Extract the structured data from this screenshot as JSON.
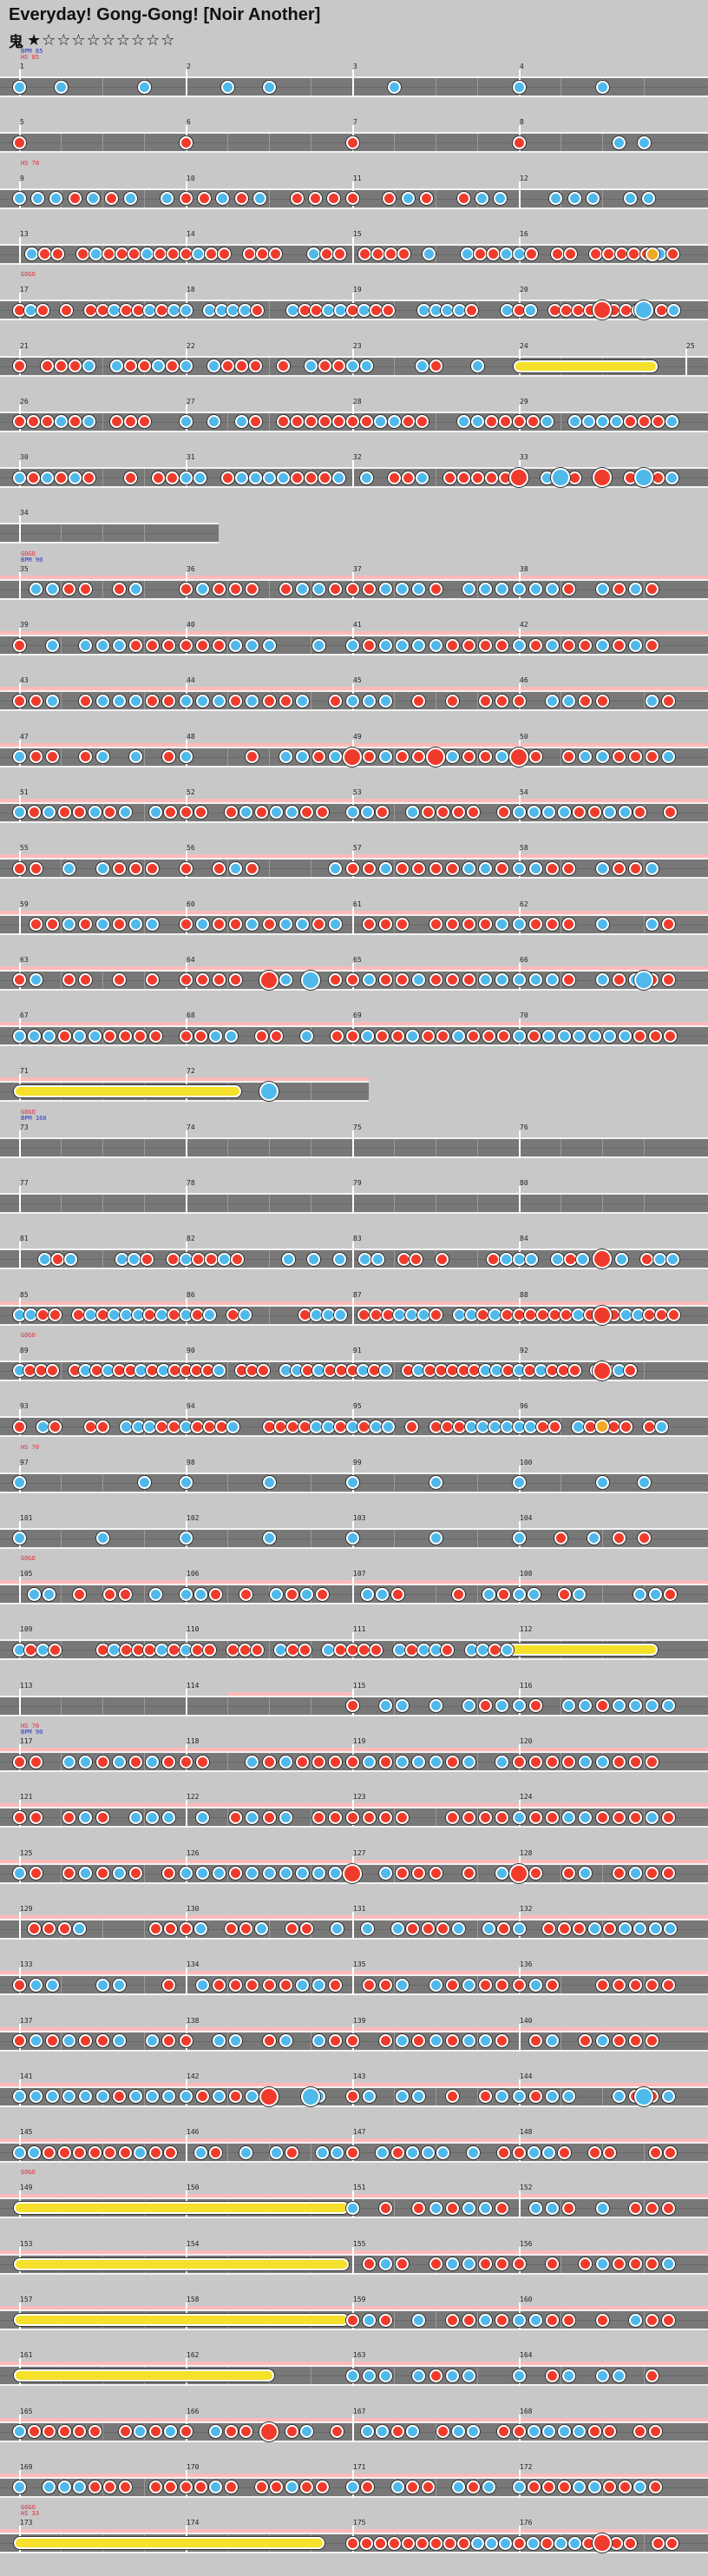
{
  "title": "Everyday! Gong-Gong! [Noir Another]",
  "difficulty": {
    "label": "鬼",
    "stars": "★☆☆☆☆☆☆☆☆☆"
  },
  "colors": {
    "don": "#f03b2c",
    "ka": "#4fb9ec",
    "roll": "#f5e02b",
    "gogo": "#ffb9b9",
    "lane": "#787878"
  },
  "rows": [
    {
      "measures": [
        1,
        2,
        3,
        4
      ],
      "labels": [
        "BPM 85",
        "HS 85"
      ],
      "label_colors": [
        "#2a33c8",
        "#e2283c"
      ],
      "gogo": [
        0,
        0,
        0,
        0
      ],
      "notes": [
        [
          0,
          "k"
        ],
        [
          0.25,
          "k"
        ],
        [
          0.75,
          "k"
        ],
        [
          1.25,
          "k"
        ],
        [
          1.5,
          "k"
        ],
        [
          2.25,
          "k"
        ],
        [
          3.0,
          "k"
        ],
        [
          3.5,
          "k"
        ]
      ],
      "seed": 1
    },
    {
      "measures": [
        5,
        6,
        7,
        8
      ],
      "labels": [],
      "gogo": [
        0,
        0,
        0,
        0
      ],
      "notes": [
        [
          0,
          "d"
        ],
        [
          1,
          "d"
        ],
        [
          2,
          "d"
        ],
        [
          3,
          "d"
        ],
        [
          3.6,
          "k"
        ],
        [
          3.75,
          "k"
        ]
      ],
      "seed": 2
    },
    {
      "measures": [
        9,
        10,
        11,
        12
      ],
      "labels": [
        "HS 70"
      ],
      "label_colors": [
        "#e2283c"
      ],
      "gogo": [
        0,
        0,
        0,
        0
      ],
      "density": 9,
      "seed": 3
    },
    {
      "measures": [
        13,
        14,
        15,
        16
      ],
      "labels": [],
      "gogo": [
        0,
        0,
        0,
        0
      ],
      "density": 13,
      "seed": 4,
      "balloon": [
        3.8
      ]
    },
    {
      "measures": [
        17,
        18,
        19,
        20
      ],
      "labels": [
        "GOGO"
      ],
      "label_colors": [
        "#e2283c"
      ],
      "gogo": [
        0,
        0,
        0,
        0
      ],
      "density": 14,
      "seed": 5,
      "bigend": [
        3.5,
        3.75
      ]
    },
    {
      "measures": [
        21,
        22,
        23,
        24,
        25
      ],
      "labels": [],
      "gogo": [
        0,
        0,
        0,
        0
      ],
      "density": 12,
      "seed": 6,
      "roll": [
        3.0,
        3.8
      ],
      "cut": 3.0
    },
    {
      "measures": [
        26,
        27,
        28,
        29
      ],
      "labels": [],
      "gogo": [
        0,
        0,
        0,
        0
      ],
      "density": 12,
      "seed": 7
    },
    {
      "measures": [
        30,
        31,
        32,
        33
      ],
      "labels": [],
      "gogo": [
        0,
        0,
        0,
        0
      ],
      "density": 12,
      "seed": 8,
      "bigend": [
        3.0,
        3.25,
        3.5,
        3.75
      ]
    },
    {
      "measures": [
        34
      ],
      "labels": [],
      "gogo": [
        0
      ],
      "short": 1.2,
      "notes": [],
      "seed": 9
    },
    {
      "measures": [
        35,
        36,
        37,
        38
      ],
      "labels": [
        "GOGO",
        "BPM 90"
      ],
      "label_colors": [
        "#e2283c",
        "#2a33c8"
      ],
      "gogo": [
        1,
        1,
        1,
        1
      ],
      "density": 10,
      "seed": 10
    },
    {
      "measures": [
        39,
        40,
        41,
        42
      ],
      "labels": [],
      "gogo": [
        1,
        1,
        1,
        1
      ],
      "density": 10,
      "seed": 11
    },
    {
      "measures": [
        43,
        44,
        45,
        46
      ],
      "labels": [],
      "gogo": [
        1,
        1,
        1,
        1
      ],
      "density": 10,
      "seed": 12
    },
    {
      "measures": [
        47,
        48,
        49,
        50
      ],
      "labels": [],
      "gogo": [
        1,
        1,
        1,
        1
      ],
      "density": 10,
      "seed": 13,
      "bigend": [
        2.0,
        2.5,
        3.0
      ]
    },
    {
      "measures": [
        51,
        52,
        53,
        54
      ],
      "labels": [],
      "gogo": [
        1,
        1,
        1,
        1
      ],
      "density": 11,
      "seed": 14
    },
    {
      "measures": [
        55,
        56,
        57,
        58
      ],
      "labels": [],
      "gogo": [
        1,
        1,
        1,
        1
      ],
      "density": 10,
      "seed": 15
    },
    {
      "measures": [
        59,
        60,
        61,
        62
      ],
      "labels": [],
      "gogo": [
        1,
        1,
        1,
        1
      ],
      "density": 10,
      "seed": 16
    },
    {
      "measures": [
        63,
        64,
        65,
        66
      ],
      "labels": [],
      "gogo": [
        1,
        1,
        1,
        1
      ],
      "density": 10,
      "seed": 17,
      "bigend": [
        1.5,
        1.75,
        3.75
      ]
    },
    {
      "measures": [
        67,
        68,
        69,
        70
      ],
      "labels": [],
      "gogo": [
        1,
        1,
        1,
        1
      ],
      "density": 11,
      "seed": 18
    },
    {
      "measures": [
        71,
        72
      ],
      "labels": [],
      "gogo": [
        1,
        1
      ],
      "short": 2.1,
      "roll": [
        0,
        1.3
      ],
      "notes": [
        [
          1.5,
          "K"
        ]
      ],
      "seed": 19
    },
    {
      "measures": [
        73,
        74,
        75,
        76
      ],
      "labels": [
        "GOGO",
        "BPM 160"
      ],
      "label_colors": [
        "#e2283c",
        "#2a33c8"
      ],
      "gogo": [
        0,
        0,
        0,
        0
      ],
      "notes": [],
      "seed": 20
    },
    {
      "measures": [
        77,
        78,
        79,
        80
      ],
      "labels": [],
      "gogo": [
        0,
        0,
        0,
        0
      ],
      "notes": [],
      "seed": 21
    },
    {
      "measures": [
        81,
        82,
        83,
        84
      ],
      "labels": [],
      "gogo": [
        0,
        0,
        0,
        0
      ],
      "density": 13,
      "seed": 22,
      "bigend": [
        3.5
      ]
    },
    {
      "measures": [
        85,
        86,
        87,
        88
      ],
      "labels": [],
      "gogo": [
        1,
        1,
        1,
        1
      ],
      "density": 14,
      "seed": 23,
      "bigend": [
        3.5
      ]
    },
    {
      "measures": [
        89,
        90,
        91,
        92
      ],
      "labels": [
        "GOGO"
      ],
      "label_colors": [
        "#e2283c"
      ],
      "gogo": [
        0,
        0,
        0,
        0
      ],
      "density": 15,
      "seed": 24,
      "bigend": [
        3.5
      ]
    },
    {
      "measures": [
        93,
        94,
        95,
        96
      ],
      "labels": [],
      "gogo": [
        0,
        0,
        0,
        0
      ],
      "density": 14,
      "seed": 25,
      "balloon": [
        3.5
      ]
    },
    {
      "measures": [
        97,
        98,
        99,
        100
      ],
      "labels": [
        "HS 70"
      ],
      "label_colors": [
        "#e2283c"
      ],
      "gogo": [
        0,
        0,
        0,
        0
      ],
      "notes": [
        [
          0,
          "k"
        ],
        [
          0.75,
          "k"
        ],
        [
          1.0,
          "k"
        ],
        [
          1.5,
          "k"
        ],
        [
          2.0,
          "k"
        ],
        [
          2.5,
          "k"
        ],
        [
          3.0,
          "k"
        ],
        [
          3.5,
          "k"
        ],
        [
          3.75,
          "k"
        ]
      ],
      "seed": 26
    },
    {
      "measures": [
        101,
        102,
        103,
        104
      ],
      "labels": [],
      "gogo": [
        0,
        0,
        0,
        0
      ],
      "notes": [
        [
          0,
          "k"
        ],
        [
          0.5,
          "k"
        ],
        [
          1.0,
          "k"
        ],
        [
          1.5,
          "k"
        ],
        [
          2.0,
          "k"
        ],
        [
          2.5,
          "k"
        ],
        [
          3.0,
          "k"
        ],
        [
          3.25,
          "d"
        ],
        [
          3.45,
          "k"
        ],
        [
          3.6,
          "d"
        ],
        [
          3.75,
          "d"
        ]
      ],
      "seed": 27
    },
    {
      "measures": [
        105,
        106,
        107,
        108
      ],
      "labels": [
        "GOGO"
      ],
      "label_colors": [
        "#e2283c"
      ],
      "gogo": [
        1,
        1,
        1,
        1
      ],
      "density": 11,
      "seed": 28
    },
    {
      "measures": [
        109,
        110,
        111,
        112
      ],
      "labels": [],
      "gogo": [
        0,
        0,
        0,
        0
      ],
      "density": 14,
      "seed": 29,
      "roll": [
        2.95,
        3.8
      ],
      "cut": 2.95
    },
    {
      "measures": [
        113,
        114,
        115,
        116
      ],
      "labels": [],
      "gogo": [
        0,
        0.5,
        0,
        0
      ],
      "density": 10,
      "seed": 30,
      "start": 2.0
    },
    {
      "measures": [
        117,
        118,
        119,
        120
      ],
      "labels": [
        "HS 70",
        "BPM 90"
      ],
      "label_colors": [
        "#e2283c",
        "#2a33c8"
      ],
      "gogo": [
        1,
        1,
        1,
        1
      ],
      "density": 10,
      "seed": 31
    },
    {
      "measures": [
        121,
        122,
        123,
        124
      ],
      "labels": [],
      "gogo": [
        1,
        1,
        1,
        1
      ],
      "density": 10,
      "seed": 32
    },
    {
      "measures": [
        125,
        126,
        127,
        128
      ],
      "labels": [],
      "gogo": [
        1,
        1,
        1,
        1
      ],
      "density": 10,
      "seed": 33,
      "bigend": [
        2.0,
        3.0
      ]
    },
    {
      "measures": [
        129,
        130,
        131,
        132
      ],
      "labels": [],
      "gogo": [
        1,
        1,
        1,
        1
      ],
      "density": 11,
      "seed": 34
    },
    {
      "measures": [
        133,
        134,
        135,
        136
      ],
      "labels": [],
      "gogo": [
        1,
        1,
        1,
        1
      ],
      "density": 10,
      "seed": 35
    },
    {
      "measures": [
        137,
        138,
        139,
        140
      ],
      "labels": [],
      "gogo": [
        1,
        1,
        1,
        1
      ],
      "density": 10,
      "seed": 36
    },
    {
      "measures": [
        141,
        142,
        143,
        144
      ],
      "labels": [],
      "gogo": [
        1,
        1,
        1,
        1
      ],
      "density": 10,
      "seed": 37,
      "bigend": [
        1.5,
        1.75,
        3.75
      ]
    },
    {
      "measures": [
        145,
        146,
        147,
        148
      ],
      "labels": [],
      "gogo": [
        1,
        1,
        1,
        1
      ],
      "density": 11,
      "seed": 38
    },
    {
      "measures": [
        149,
        150,
        151,
        152
      ],
      "labels": [
        "GOGO"
      ],
      "label_colors": [
        "#e2283c"
      ],
      "gogo": [
        1,
        1,
        1,
        1
      ],
      "roll": [
        0,
        1.95
      ],
      "density": 10,
      "seed": 39,
      "start": 2.0
    },
    {
      "measures": [
        153,
        154,
        155,
        156
      ],
      "labels": [],
      "gogo": [
        1,
        1,
        1,
        1
      ],
      "roll": [
        0,
        1.95
      ],
      "density": 10,
      "seed": 40,
      "start": 2.0
    },
    {
      "measures": [
        157,
        158,
        159,
        160
      ],
      "labels": [],
      "gogo": [
        1,
        1,
        1,
        1
      ],
      "roll": [
        0,
        1.95
      ],
      "density": 10,
      "seed": 41,
      "start": 2.0
    },
    {
      "measures": [
        161,
        162,
        163,
        164
      ],
      "labels": [],
      "gogo": [
        1,
        1,
        1,
        1
      ],
      "roll": [
        0,
        1.5
      ],
      "density": 10,
      "seed": 42,
      "start": 2.0
    },
    {
      "measures": [
        165,
        166,
        167,
        168
      ],
      "labels": [],
      "gogo": [
        1,
        1,
        1,
        1
      ],
      "density": 11,
      "seed": 43,
      "bigend": [
        1.5
      ]
    },
    {
      "measures": [
        169,
        170,
        171,
        172
      ],
      "labels": [],
      "gogo": [
        1,
        1,
        1,
        1
      ],
      "density": 11,
      "seed": 44
    },
    {
      "measures": [
        173,
        174,
        175,
        176
      ],
      "labels": [
        "GOGO",
        "HS 33"
      ],
      "label_colors": [
        "#e2283c",
        "#e2283c"
      ],
      "gogo": [
        1,
        1,
        1,
        1
      ],
      "roll": [
        0,
        1.8
      ],
      "density": 12,
      "seed": 45,
      "start": 2.0,
      "bigend": [
        3.5
      ]
    }
  ]
}
